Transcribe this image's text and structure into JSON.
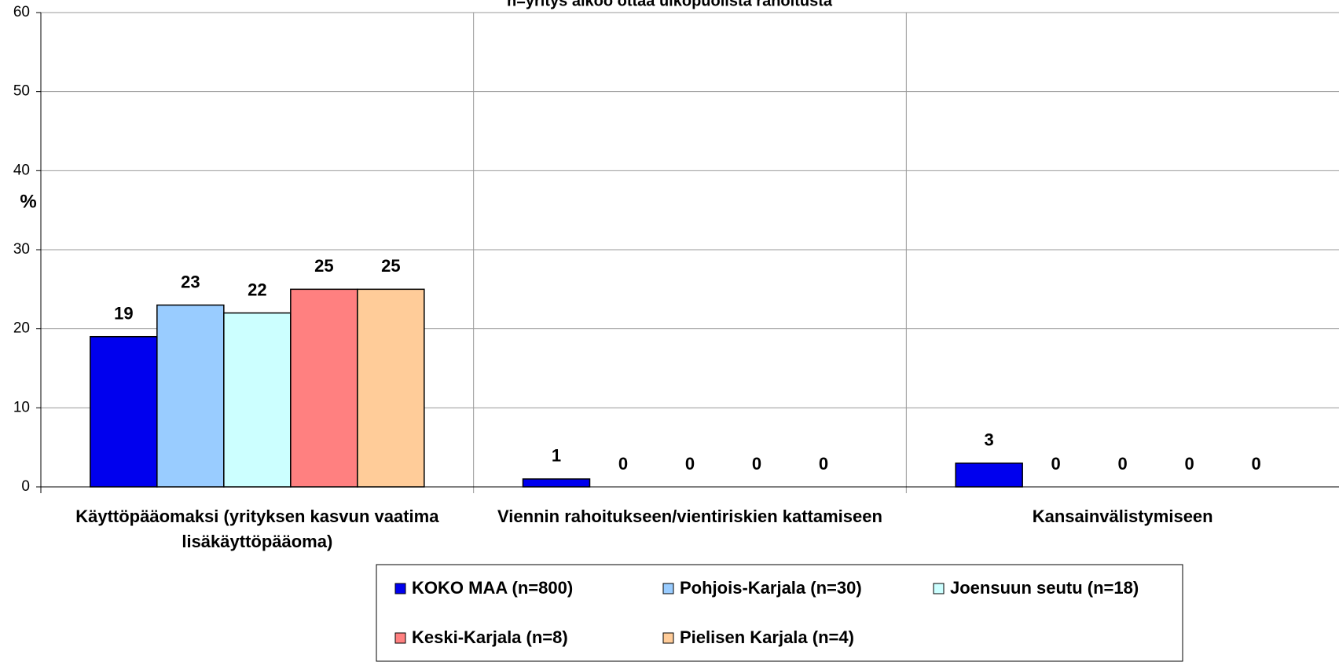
{
  "chart_data": {
    "type": "bar",
    "title": "n=yritys aikoo ottaa ulkopuolista rahoitusta",
    "y_label": "%",
    "categories": [
      "Käyttöpääomaksi (yrityksen kasvun vaatima lisäkäyttöpääoma)",
      "Viennin rahoitukseen/vientiriskien kattamiseen",
      "Kansainvälistymiseen"
    ],
    "series": [
      {
        "name": "KOKO MAA (n=800)",
        "color": "#0000ee",
        "values": [
          19,
          1,
          3
        ]
      },
      {
        "name": "Pohjois-Karjala (n=30)",
        "color": "#99ccff",
        "values": [
          23,
          0,
          0
        ]
      },
      {
        "name": "Joensuun seutu (n=18)",
        "color": "#ccffff",
        "values": [
          22,
          0,
          0
        ]
      },
      {
        "name": "Keski-Karjala (n=8)",
        "color": "#ff8080",
        "values": [
          25,
          0,
          0
        ]
      },
      {
        "name": "Pielisen Karjala (n=4)",
        "color": "#ffcc99",
        "values": [
          25,
          0,
          0
        ]
      }
    ],
    "ylim": [
      0,
      60
    ],
    "yticks": [
      0,
      10,
      20,
      30,
      40,
      50,
      60
    ],
    "grid": true,
    "legend": "bottom"
  }
}
